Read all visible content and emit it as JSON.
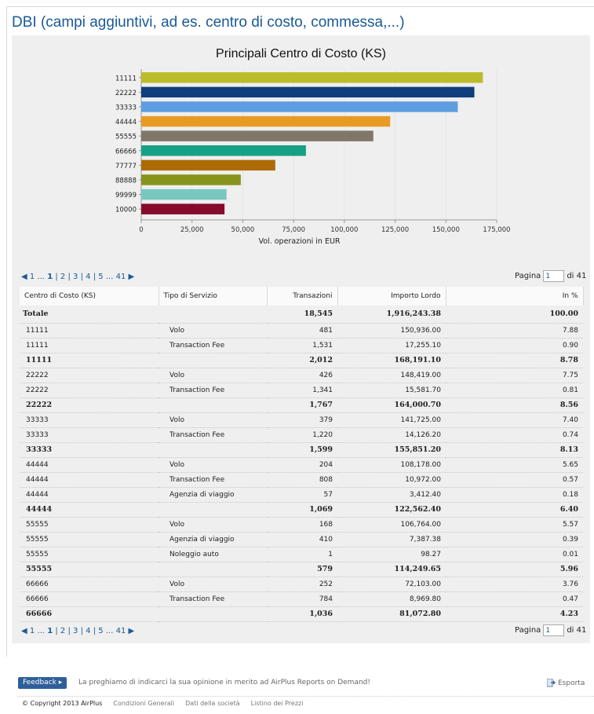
{
  "page": {
    "title": "DBI (campi aggiuntivi, ad es. centro di costo, commessa,...)"
  },
  "chart_data": {
    "type": "bar",
    "title": "Principali Centro di Costo (KS)",
    "xlabel": "Vol. operazioni in EUR",
    "ylabel": "",
    "orientation": "horizontal",
    "categories": [
      "11111",
      "22222",
      "33333",
      "44444",
      "55555",
      "66666",
      "77777",
      "88888",
      "99999",
      "10000"
    ],
    "values": [
      168191.1,
      164000.7,
      155851.2,
      122562.4,
      114249.65,
      81072.8,
      66000,
      49000,
      42000,
      41000
    ],
    "colors": [
      "#bcbc2a",
      "#0f3e7c",
      "#5e9ee0",
      "#e89b24",
      "#807669",
      "#16a084",
      "#ad6b08",
      "#86941a",
      "#79c8c0",
      "#850a2c"
    ],
    "xlim": [
      0,
      175000
    ],
    "xticks": [
      "0",
      "25,000",
      "50,000",
      "75,000",
      "100,000",
      "125,000",
      "150,000",
      "175,000"
    ],
    "grid": true
  },
  "pager": {
    "first": "1",
    "dots": "...",
    "pages": [
      "1",
      "2",
      "3",
      "4",
      "5"
    ],
    "last": "41",
    "pagina_label": "Pagina",
    "pagina_value": "1",
    "di_label": "di 41"
  },
  "table": {
    "headers": [
      "Centro di Costo (KS)",
      "Tipo di Servizio",
      "Transazioni",
      "Importo Lordo",
      "In %"
    ],
    "total": [
      "Totale",
      "",
      "18,545",
      "1,916,243.38",
      "100.00"
    ],
    "rows": [
      {
        "t": "det",
        "c": [
          "11111",
          "Volo",
          "481",
          "150,936.00",
          "7.88"
        ]
      },
      {
        "t": "det",
        "c": [
          "11111",
          "Transaction Fee",
          "1,531",
          "17,255.10",
          "0.90"
        ]
      },
      {
        "t": "sub",
        "c": [
          "11111",
          "",
          "2,012",
          "168,191.10",
          "8.78"
        ]
      },
      {
        "t": "det",
        "c": [
          "22222",
          "Volo",
          "426",
          "148,419.00",
          "7.75"
        ]
      },
      {
        "t": "det",
        "c": [
          "22222",
          "Transaction Fee",
          "1,341",
          "15,581.70",
          "0.81"
        ]
      },
      {
        "t": "sub",
        "c": [
          "22222",
          "",
          "1,767",
          "164,000.70",
          "8.56"
        ]
      },
      {
        "t": "det",
        "c": [
          "33333",
          "Volo",
          "379",
          "141,725.00",
          "7.40"
        ]
      },
      {
        "t": "det",
        "c": [
          "33333",
          "Transaction Fee",
          "1,220",
          "14,126.20",
          "0.74"
        ]
      },
      {
        "t": "sub",
        "c": [
          "33333",
          "",
          "1,599",
          "155,851.20",
          "8.13"
        ]
      },
      {
        "t": "det",
        "c": [
          "44444",
          "Volo",
          "204",
          "108,178.00",
          "5.65"
        ]
      },
      {
        "t": "det",
        "c": [
          "44444",
          "Transaction Fee",
          "808",
          "10,972.00",
          "0.57"
        ]
      },
      {
        "t": "det",
        "c": [
          "44444",
          "Agenzia di viaggio",
          "57",
          "3,412.40",
          "0.18"
        ]
      },
      {
        "t": "sub",
        "c": [
          "44444",
          "",
          "1,069",
          "122,562.40",
          "6.40"
        ]
      },
      {
        "t": "det",
        "c": [
          "55555",
          "Volo",
          "168",
          "106,764.00",
          "5.57"
        ]
      },
      {
        "t": "det",
        "c": [
          "55555",
          "Agenzia di viaggio",
          "410",
          "7,387.38",
          "0.39"
        ]
      },
      {
        "t": "det",
        "c": [
          "55555",
          "Noleggio auto",
          "1",
          "98.27",
          "0.01"
        ]
      },
      {
        "t": "sub",
        "c": [
          "55555",
          "",
          "579",
          "114,249.65",
          "5.96"
        ]
      },
      {
        "t": "det",
        "c": [
          "66666",
          "Volo",
          "252",
          "72,103.00",
          "3.76"
        ]
      },
      {
        "t": "det",
        "c": [
          "66666",
          "Transaction Fee",
          "784",
          "8,969.80",
          "0.47"
        ]
      },
      {
        "t": "sub",
        "c": [
          "66666",
          "",
          "1,036",
          "81,072.80",
          "4.23"
        ]
      }
    ]
  },
  "footer": {
    "feedback_label": "Feedback",
    "feedback_msg": "La preghiamo di indicarci la sua opinione in merito ad AirPlus Reports on Demand!",
    "esporta_label": "Esporta",
    "copyright": "© Copyright 2013 AirPlus",
    "links": [
      "Condizioni Generali",
      "Dati della società",
      "Listino dei Prezzi"
    ]
  }
}
